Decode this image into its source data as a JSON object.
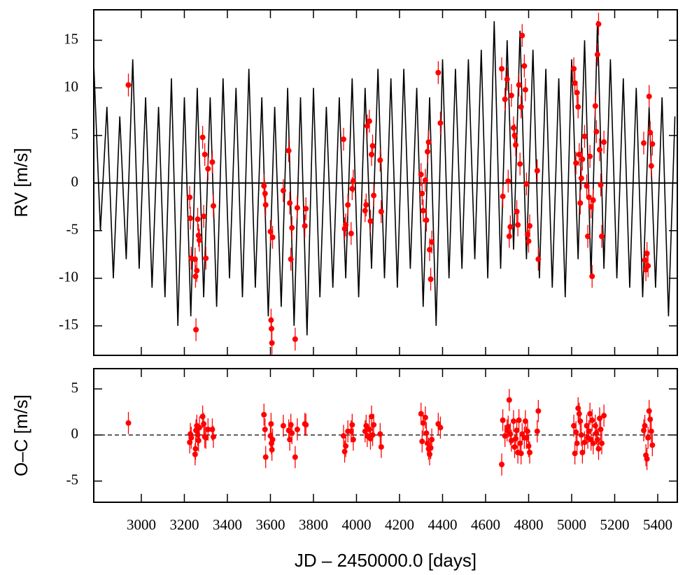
{
  "chart_data": [
    {
      "type": "line",
      "ylabel": "RV [m/s]",
      "xlim": [
        2779,
        5491
      ],
      "ylim": [
        -18.1,
        18.2
      ],
      "xticks": [
        3000,
        3200,
        3400,
        3600,
        3800,
        4000,
        4200,
        4400,
        4600,
        4800,
        5000,
        5200,
        5400
      ],
      "yticks": [
        -15,
        -10,
        -5,
        0,
        5,
        10,
        15
      ],
      "reference_line": 0,
      "series": [
        {
          "type": "line",
          "color": "#000000",
          "x": [
            2780,
            2810,
            2840,
            2870,
            2900,
            2930,
            2960,
            2990,
            3020,
            3050,
            3080,
            3110,
            3140,
            3170,
            3200,
            3230,
            3260,
            3290,
            3320,
            3350,
            3380,
            3410,
            3440,
            3470,
            3500,
            3530,
            3560,
            3590,
            3620,
            3650,
            3680,
            3710,
            3740,
            3770,
            3800,
            3830,
            3860,
            3890,
            3920,
            3950,
            3980,
            4010,
            4040,
            4070,
            4100,
            4130,
            4160,
            4190,
            4220,
            4250,
            4280,
            4310,
            4340,
            4370,
            4400,
            4430,
            4460,
            4490,
            4520,
            4550,
            4580,
            4610,
            4640,
            4670,
            4700,
            4730,
            4760,
            4790,
            4820,
            4850,
            4880,
            4910,
            4940,
            4970,
            5000,
            5030,
            5060,
            5090,
            5120,
            5150,
            5180,
            5210,
            5240,
            5270,
            5300,
            5330,
            5360,
            5390,
            5420,
            5450,
            5480
          ],
          "values": [
            12,
            -5,
            8,
            -10,
            7,
            -8,
            13,
            -9,
            9,
            -11,
            8,
            -12,
            11,
            -15,
            9,
            -14,
            10,
            -12,
            9,
            -13,
            11,
            -10,
            10,
            -12,
            12,
            -11,
            9,
            -14,
            8,
            -13,
            10,
            -15,
            9,
            -16,
            10,
            -12,
            8,
            -11,
            9,
            -10,
            11,
            -12,
            10,
            -9,
            12,
            -10,
            11,
            -11,
            12,
            -9,
            10,
            -13,
            9,
            -15,
            13,
            -10,
            12,
            -9,
            13,
            -8,
            14,
            -10,
            17,
            -9,
            15,
            -7,
            16,
            -8,
            14,
            -10,
            12,
            -11,
            11,
            -12,
            13,
            -8,
            15,
            -10,
            17,
            -9,
            13,
            -10,
            11,
            -11,
            10,
            -12,
            8,
            -11,
            9,
            -14,
            7
          ]
        },
        {
          "type": "scatter",
          "color": "#ff0000",
          "error": 1.2,
          "x": [
            2940,
            3225,
            3228,
            3232,
            3250,
            3252,
            3254,
            3258,
            3262,
            3266,
            3270,
            3285,
            3290,
            3295,
            3300,
            3310,
            3330,
            3335,
            3570,
            3575,
            3578,
            3600,
            3603,
            3605,
            3607,
            3610,
            3660,
            3685,
            3690,
            3695,
            3700,
            3715,
            3725,
            3760,
            3765,
            3940,
            3945,
            3950,
            3960,
            3975,
            3980,
            3985,
            4040,
            4045,
            4050,
            4060,
            4065,
            4070,
            4075,
            4080,
            4110,
            4115,
            4300,
            4305,
            4310,
            4320,
            4325,
            4330,
            4335,
            4340,
            4345,
            4350,
            4380,
            4390,
            4675,
            4680,
            4690,
            4700,
            4705,
            4710,
            4715,
            4720,
            4730,
            4735,
            4740,
            4745,
            4750,
            4755,
            4760,
            4765,
            4770,
            4780,
            4785,
            4790,
            4795,
            4800,
            4805,
            4840,
            4845,
            5010,
            5015,
            5020,
            5025,
            5030,
            5035,
            5040,
            5045,
            5050,
            5060,
            5070,
            5075,
            5080,
            5085,
            5090,
            5095,
            5100,
            5110,
            5115,
            5120,
            5125,
            5130,
            5135,
            5140,
            5150,
            5335,
            5340,
            5345,
            5350,
            5355,
            5360,
            5365,
            5370,
            5375
          ],
          "values": [
            10.3,
            -1.5,
            -3.7,
            -7.9,
            -8.0,
            -9.8,
            -15.4,
            -9.2,
            -3.8,
            -5.5,
            -6.0,
            4.8,
            -3.5,
            3.0,
            -7.9,
            1.5,
            2.2,
            -2.4,
            -0.3,
            -1.1,
            -2.3,
            -5.1,
            -14.4,
            -15.3,
            -16.8,
            -5.7,
            -0.8,
            3.4,
            -2.1,
            -8.0,
            -4.7,
            -16.4,
            -2.6,
            -4.5,
            -2.7,
            4.6,
            -4.8,
            -4.4,
            -2.3,
            -5.3,
            -0.6,
            0.2,
            -2.9,
            -2.3,
            6.0,
            6.5,
            -4.0,
            3.0,
            3.9,
            -1.3,
            2.4,
            -3.0,
            0.9,
            -1.1,
            -2.9,
            0.3,
            -3.9,
            3.3,
            4.3,
            -7.0,
            -10.1,
            -6.2,
            11.6,
            6.3,
            12.0,
            -1.4,
            8.8,
            10.9,
            0.2,
            -5.6,
            -4.6,
            9.2,
            5.8,
            5.0,
            4.0,
            -3.0,
            -4.4,
            10.3,
            2.0,
            8.0,
            15.5,
            12.3,
            9.8,
            -0.1,
            -5.4,
            -6.1,
            -4.5,
            1.3,
            -8.0,
            12.0,
            10.5,
            2.1,
            9.5,
            8.0,
            3.0,
            -2.1,
            0.5,
            2.5,
            4.9,
            -0.3,
            -5.6,
            -1.5,
            2.8,
            -2.5,
            -9.8,
            -1.8,
            8.1,
            5.4,
            13.5,
            16.7,
            3.5,
            -0.2,
            -5.6,
            4.3,
            4.2,
            -8.1,
            -9.1,
            -7.4,
            -8.7,
            9.1,
            5.3,
            1.8,
            4.1
          ]
        }
      ]
    },
    {
      "type": "scatter",
      "ylabel": "O–C [m/s]",
      "xlabel": "JD – 2450000.0 [days]",
      "xlim": [
        2779,
        5491
      ],
      "ylim": [
        -7.3,
        7.2
      ],
      "xticks": [
        3000,
        3200,
        3400,
        3600,
        3800,
        4000,
        4200,
        4400,
        4600,
        4800,
        5000,
        5200,
        5400
      ],
      "yticks": [
        -5,
        0,
        5
      ],
      "reference_line": 0,
      "reference_style": "dashed",
      "series": [
        {
          "type": "scatter",
          "color": "#ff0000",
          "error": 1.2,
          "x": [
            2940,
            3225,
            3228,
            3232,
            3250,
            3252,
            3254,
            3258,
            3262,
            3266,
            3270,
            3285,
            3290,
            3295,
            3300,
            3310,
            3330,
            3335,
            3570,
            3575,
            3578,
            3600,
            3603,
            3605,
            3607,
            3610,
            3660,
            3685,
            3690,
            3695,
            3700,
            3715,
            3725,
            3760,
            3765,
            3940,
            3945,
            3950,
            3960,
            3975,
            3980,
            3985,
            4040,
            4045,
            4050,
            4060,
            4065,
            4070,
            4075,
            4080,
            4110,
            4115,
            4300,
            4305,
            4310,
            4320,
            4325,
            4330,
            4335,
            4340,
            4345,
            4350,
            4380,
            4390,
            4675,
            4680,
            4690,
            4700,
            4705,
            4710,
            4715,
            4720,
            4730,
            4735,
            4740,
            4745,
            4750,
            4755,
            4760,
            4765,
            4770,
            4780,
            4785,
            4790,
            4795,
            4800,
            4805,
            4840,
            4845,
            5010,
            5015,
            5020,
            5025,
            5030,
            5035,
            5040,
            5045,
            5050,
            5060,
            5070,
            5075,
            5080,
            5085,
            5090,
            5095,
            5100,
            5110,
            5115,
            5120,
            5125,
            5130,
            5135,
            5140,
            5150,
            5335,
            5340,
            5345,
            5350,
            5355,
            5360,
            5365,
            5370,
            5375
          ],
          "values": [
            1.3,
            -0.8,
            0.1,
            -0.3,
            -2.1,
            -1.5,
            0.5,
            1.0,
            0.0,
            -0.6,
            0.8,
            2.0,
            1.2,
            -0.2,
            -0.3,
            0.6,
            0.6,
            -0.2,
            2.2,
            0.6,
            -2.4,
            -0.1,
            1.2,
            -0.9,
            -1.6,
            -0.5,
            1.0,
            0.5,
            -0.5,
            1.1,
            0.2,
            -2.4,
            0.6,
            1.2,
            1.1,
            -0.1,
            -1.8,
            -1.2,
            0.4,
            0.4,
            1.1,
            -0.5,
            0.4,
            1.0,
            -0.1,
            0.6,
            -0.4,
            2.0,
            0.0,
            1.1,
            0.1,
            -1.3,
            2.3,
            -0.7,
            1.3,
            1.9,
            0.2,
            -0.9,
            -1.5,
            -2.1,
            -1.4,
            -0.5,
            1.2,
            0.8,
            -3.2,
            1.6,
            -0.1,
            0.5,
            0.9,
            3.8,
            0.1,
            -0.6,
            1.5,
            -1.3,
            -0.4,
            0.5,
            -1.9,
            1.6,
            -0.9,
            -2.0,
            0.1,
            -0.3,
            1.5,
            -0.3,
            0.4,
            -1.2,
            -1.9,
            0.4,
            2.6,
            1.0,
            -2.0,
            0.3,
            -0.9,
            2.9,
            2.3,
            1.5,
            0.0,
            -1.9,
            -0.8,
            1.0,
            -0.3,
            0.4,
            2.3,
            -0.5,
            1.6,
            -0.9,
            1.0,
            0.2,
            -0.5,
            -1.5,
            1.8,
            0.6,
            -0.9,
            2.1,
            0.5,
            1.0,
            -2.2,
            -2.6,
            -0.3,
            2.6,
            1.7,
            0.4,
            -1.1
          ]
        }
      ]
    }
  ]
}
